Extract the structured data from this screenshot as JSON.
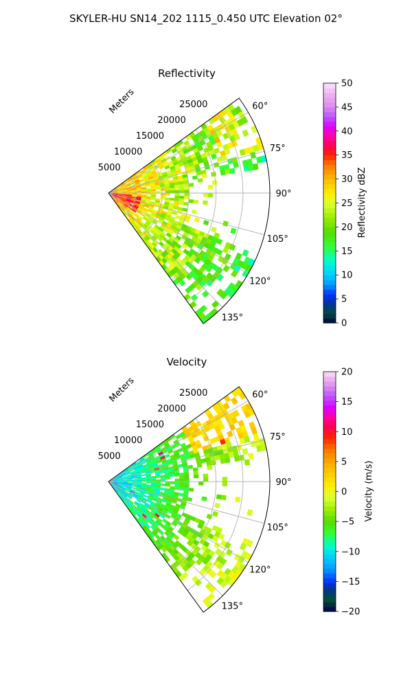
{
  "figure": {
    "title": "SKYLER-HU  SN14_202  1115_0.450 UTC Elevation 02°"
  },
  "chart_data": [
    {
      "type": "heatmap",
      "projection": "polar sector (PPI)",
      "title": "Reflectivity",
      "radial_axis_label": "Meters",
      "radial_ticks": [
        5000,
        10000,
        15000,
        20000,
        25000
      ],
      "radial_tick_labels": [
        "5000",
        "10000",
        "15000",
        "20000",
        "25000"
      ],
      "rmax": 30000,
      "angle_range_deg": [
        54,
        144
      ],
      "angle_ticks_deg": [
        60,
        75,
        90,
        105,
        120,
        135
      ],
      "angle_tick_labels": [
        "60°",
        "75°",
        "90°",
        "105°",
        "120°",
        "135°"
      ],
      "grid": true,
      "colorbar": {
        "label": "Reflectivity dBZ",
        "vmin": 0,
        "vmax": 50,
        "ticks": [
          0,
          5,
          10,
          15,
          20,
          25,
          30,
          35,
          40,
          45,
          50
        ],
        "tick_labels": [
          "0",
          "5",
          "10",
          "15",
          "20",
          "25",
          "30",
          "35",
          "40",
          "45",
          "50"
        ],
        "stops": [
          {
            "v": 0,
            "color": "#00004a"
          },
          {
            "v": 2,
            "color": "#004d3a"
          },
          {
            "v": 4,
            "color": "#003399"
          },
          {
            "v": 6,
            "color": "#0033ff"
          },
          {
            "v": 8,
            "color": "#0099ff"
          },
          {
            "v": 10,
            "color": "#00ccff"
          },
          {
            "v": 13,
            "color": "#00ffcc"
          },
          {
            "v": 16,
            "color": "#33ff33"
          },
          {
            "v": 19,
            "color": "#55dd00"
          },
          {
            "v": 22,
            "color": "#99ee00"
          },
          {
            "v": 25,
            "color": "#ddff33"
          },
          {
            "v": 27,
            "color": "#ffee00"
          },
          {
            "v": 30,
            "color": "#ffbb00"
          },
          {
            "v": 33,
            "color": "#ff7700"
          },
          {
            "v": 35,
            "color": "#ff2200"
          },
          {
            "v": 37,
            "color": "#ff0055"
          },
          {
            "v": 39,
            "color": "#ff00aa"
          },
          {
            "v": 41,
            "color": "#dd00ff"
          },
          {
            "v": 43,
            "color": "#bb55ff"
          },
          {
            "v": 45,
            "color": "#dd88ee"
          },
          {
            "v": 48,
            "color": "#eeb8f2"
          },
          {
            "v": 50,
            "color": "#fbe4fb"
          }
        ]
      }
    },
    {
      "type": "heatmap",
      "projection": "polar sector (PPI)",
      "title": "Velocity",
      "radial_axis_label": "Meters",
      "radial_ticks": [
        5000,
        10000,
        15000,
        20000,
        25000
      ],
      "radial_tick_labels": [
        "5000",
        "10000",
        "15000",
        "20000",
        "25000"
      ],
      "rmax": 30000,
      "angle_range_deg": [
        54,
        144
      ],
      "angle_ticks_deg": [
        60,
        75,
        90,
        105,
        120,
        135
      ],
      "angle_tick_labels": [
        "60°",
        "75°",
        "90°",
        "105°",
        "120°",
        "135°"
      ],
      "grid": true,
      "colorbar": {
        "label": "Velocity (m/s)",
        "vmin": -20,
        "vmax": 20,
        "ticks": [
          -20,
          -15,
          -10,
          -5,
          0,
          5,
          10,
          15,
          20
        ],
        "tick_labels": [
          "−20",
          "−15",
          "−10",
          "−5",
          "0",
          "5",
          "10",
          "15",
          "20"
        ],
        "stops": [
          {
            "v": -20,
            "color": "#00004a"
          },
          {
            "v": -18,
            "color": "#004d3a"
          },
          {
            "v": -16,
            "color": "#003399"
          },
          {
            "v": -15,
            "color": "#0033ff"
          },
          {
            "v": -13,
            "color": "#0099ff"
          },
          {
            "v": -11,
            "color": "#00ccff"
          },
          {
            "v": -9,
            "color": "#00ffcc"
          },
          {
            "v": -7,
            "color": "#33ff33"
          },
          {
            "v": -5,
            "color": "#55dd00"
          },
          {
            "v": -3,
            "color": "#99ee00"
          },
          {
            "v": -1,
            "color": "#ddff33"
          },
          {
            "v": 1,
            "color": "#ffee00"
          },
          {
            "v": 4,
            "color": "#ffbb00"
          },
          {
            "v": 7,
            "color": "#ff7700"
          },
          {
            "v": 9,
            "color": "#ff2200"
          },
          {
            "v": 11,
            "color": "#ff0055"
          },
          {
            "v": 12.5,
            "color": "#ff00aa"
          },
          {
            "v": 14,
            "color": "#dd00ff"
          },
          {
            "v": 16,
            "color": "#bb55ff"
          },
          {
            "v": 17.5,
            "color": "#dd88ee"
          },
          {
            "v": 19,
            "color": "#eeb8f2"
          },
          {
            "v": 20,
            "color": "#fbe4fb"
          }
        ]
      }
    }
  ]
}
